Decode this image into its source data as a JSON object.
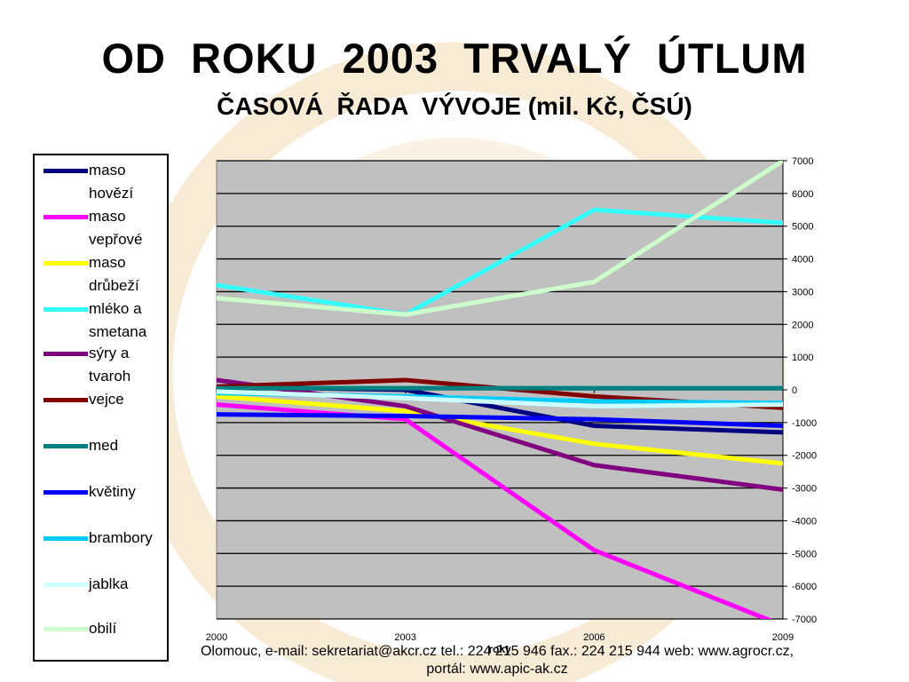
{
  "header": {
    "title": "OD  ROKU  2003  TRVALÝ  ÚTLUM",
    "subtitle": "ČASOVÁ  ŘADA  VÝVOJE (mil. Kč, ČSÚ)"
  },
  "footer": {
    "line1": "Olomouc, e-mail: sekretariat@akcr.cz tel.: 224 215 946 fax.: 224 215 944 web: www.agrocr.cz,",
    "line2": "portál: www.apic-ak.cz"
  },
  "chart_data": {
    "type": "line",
    "x": [
      "2000",
      "2003",
      "2006",
      "2009"
    ],
    "xlabel": "roky",
    "ylabel": "",
    "ylim": [
      -7000,
      7000
    ],
    "yticks": [
      7000,
      6000,
      5000,
      4000,
      3000,
      2000,
      1000,
      0,
      -1000,
      -2000,
      -3000,
      -4000,
      -5000,
      -6000,
      -7000
    ],
    "grid": true,
    "plot_background": "#c0c0c0",
    "legend_position": "left",
    "series": [
      {
        "name": "maso hovězí",
        "color": "#000080",
        "values": [
          100,
          0,
          -1100,
          -1300
        ]
      },
      {
        "name": "maso vepřové",
        "color": "#ff00ff",
        "values": [
          -450,
          -900,
          -4900,
          -7200
        ]
      },
      {
        "name": "maso drůbeží",
        "color": "#ffff00",
        "values": [
          -200,
          -650,
          -1650,
          -2250
        ]
      },
      {
        "name": "mléko a smetana",
        "color": "#33ffff",
        "values": [
          3200,
          2300,
          5500,
          5100
        ]
      },
      {
        "name": "sýry a tvaroh",
        "color": "#800080",
        "values": [
          300,
          -500,
          -2300,
          -3050
        ]
      },
      {
        "name": "vejce",
        "color": "#800000",
        "values": [
          100,
          300,
          -200,
          -550
        ]
      },
      {
        "name": "med",
        "color": "#008080",
        "values": [
          50,
          50,
          50,
          50
        ]
      },
      {
        "name": "květiny",
        "color": "#0000ff",
        "values": [
          -750,
          -800,
          -900,
          -1100
        ]
      },
      {
        "name": "brambory",
        "color": "#00ccff",
        "values": [
          -100,
          -200,
          -350,
          -400
        ]
      },
      {
        "name": "jablka",
        "color": "#ccffff",
        "values": [
          -50,
          -250,
          -500,
          -450
        ]
      },
      {
        "name": "obilí",
        "color": "#ccffcc",
        "values": [
          2800,
          2300,
          3300,
          7000
        ]
      }
    ]
  }
}
